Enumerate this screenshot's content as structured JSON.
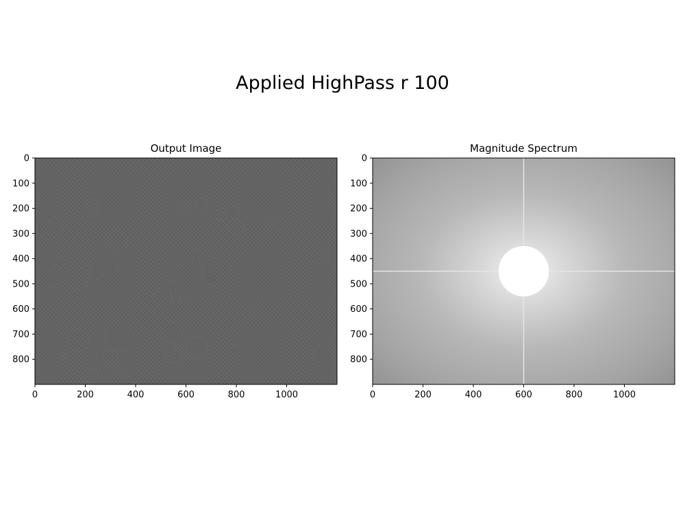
{
  "figure": {
    "title": "Applied HighPass r 100"
  },
  "chart_data": [
    {
      "type": "heatmap",
      "title": "Output Image",
      "xlabel": "",
      "ylabel": "",
      "xlim": [
        0,
        1200
      ],
      "ylim": [
        900,
        0
      ],
      "x_ticks": [
        0,
        200,
        400,
        600,
        800,
        1000
      ],
      "y_ticks": [
        0,
        100,
        200,
        300,
        400,
        500,
        600,
        700,
        800
      ],
      "colormap": "gray",
      "base_color": "#646464"
    },
    {
      "type": "heatmap",
      "title": "Magnitude Spectrum",
      "xlabel": "",
      "ylabel": "",
      "xlim": [
        0,
        1200
      ],
      "ylim": [
        900,
        0
      ],
      "x_ticks": [
        0,
        200,
        400,
        600,
        800,
        1000
      ],
      "y_ticks": [
        0,
        100,
        200,
        300,
        400,
        500,
        600,
        700,
        800
      ],
      "colormap": "gray",
      "base_color": "#a9a9a9",
      "mask": {
        "shape": "circle",
        "center": [
          600,
          450
        ],
        "radius": 100,
        "value": "white"
      },
      "center_lines": {
        "x": 600,
        "y": 450
      }
    }
  ]
}
